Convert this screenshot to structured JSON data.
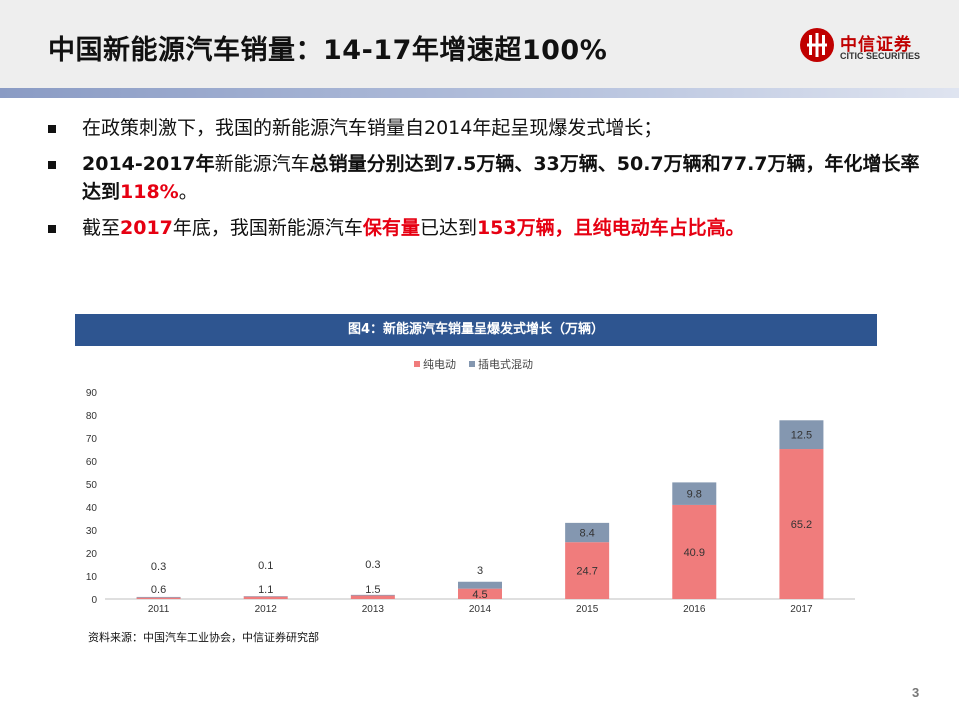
{
  "slide": {
    "title": "中国新能源汽车销量：14-17年增速超100%",
    "page_number": "3",
    "source": "资料来源：中国汽车工业协会，中信证券研究部"
  },
  "logo": {
    "name_cn": "中信证券",
    "name_en": "CITIC SECURITIES",
    "color": "#c00000"
  },
  "bullets": [
    {
      "parts": [
        {
          "text": "在政策刺激下，我国的新能源汽车销量自2014年起呈现爆发式增长；",
          "style": "normal"
        }
      ]
    },
    {
      "parts": [
        {
          "text": "2014-2017年",
          "style": "bold"
        },
        {
          "text": "新能源汽车",
          "style": "normal"
        },
        {
          "text": "总销量分别达到7.5万辆、33万辆、50.7万辆和77.7万辆，年化增长率达到",
          "style": "bold"
        },
        {
          "text": "118%",
          "style": "red"
        },
        {
          "text": "。",
          "style": "normal"
        }
      ]
    },
    {
      "parts": [
        {
          "text": "截至",
          "style": "normal"
        },
        {
          "text": "2017",
          "style": "red"
        },
        {
          "text": "年底，我国新能源汽车",
          "style": "normal"
        },
        {
          "text": "保有量",
          "style": "red"
        },
        {
          "text": "已达到",
          "style": "normal"
        },
        {
          "text": "153万辆，且纯电动车占比高。",
          "style": "red"
        }
      ]
    }
  ],
  "chart_data": {
    "type": "bar",
    "stacked": true,
    "title": "图4：新能源汽车销量呈爆发式增长（万辆）",
    "categories": [
      "2011",
      "2012",
      "2013",
      "2014",
      "2015",
      "2016",
      "2017"
    ],
    "series": [
      {
        "name": "纯电动",
        "color": "#f07c7c",
        "values": [
          0.6,
          1.1,
          1.5,
          4.5,
          24.7,
          40.9,
          65.2
        ]
      },
      {
        "name": "插电式混动",
        "color": "#8497b0",
        "values": [
          0.3,
          0.1,
          0.3,
          3.0,
          8.4,
          9.8,
          12.5
        ]
      }
    ],
    "ylim": [
      0,
      90
    ],
    "yticks": [
      0,
      10,
      20,
      30,
      40,
      50,
      60,
      70,
      80,
      90
    ],
    "legend_position": "top-center",
    "grid": false
  }
}
